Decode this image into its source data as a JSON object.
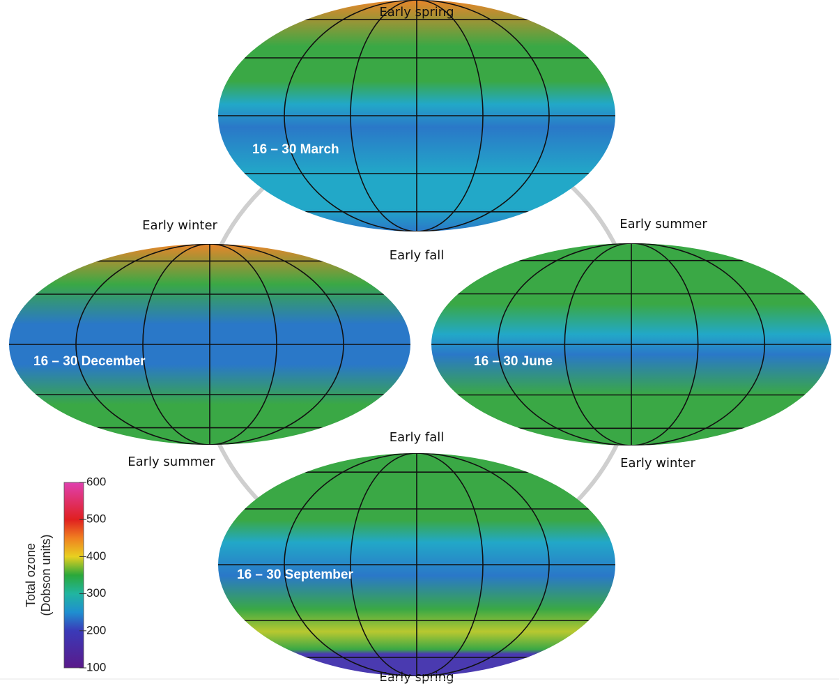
{
  "maps": [
    {
      "label": "16 – 30 March",
      "top_label": "Early spring",
      "bottom_label": "Early fall"
    },
    {
      "label": "16 – 30 December",
      "top_label": "Early winter",
      "bottom_label": "Early summer"
    },
    {
      "label": "16 – 30 June",
      "top_label": "Early summer",
      "bottom_label": "Early winter"
    },
    {
      "label": "16 – 30 September",
      "top_label": "Early fall",
      "bottom_label": "Early spring"
    }
  ],
  "colorbar": {
    "title": [
      "Total ozone",
      "(Dobson units)"
    ],
    "range": [
      100,
      600
    ],
    "ticks": [
      100,
      200,
      300,
      400,
      500,
      600
    ]
  }
}
